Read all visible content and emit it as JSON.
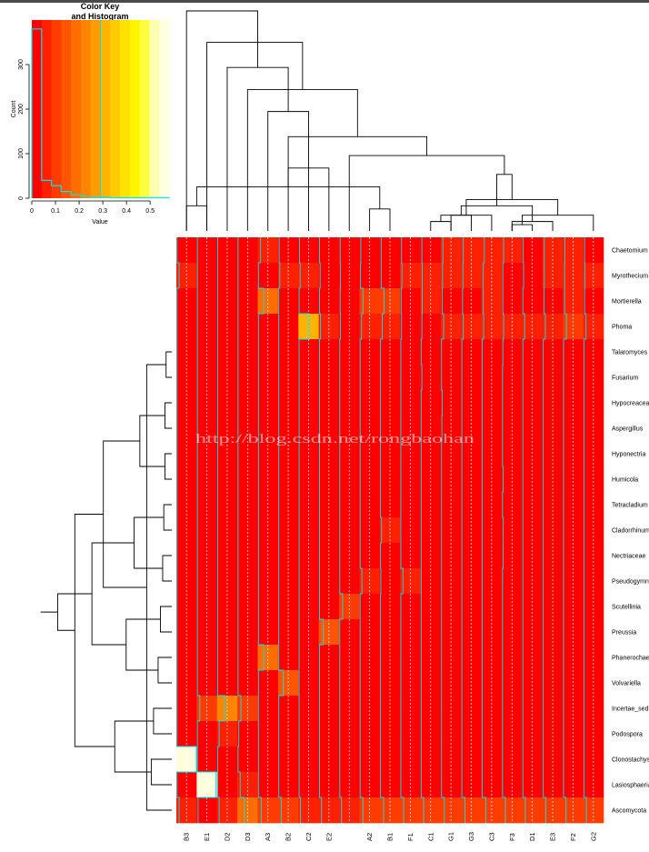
{
  "chart_data": {
    "type": "heatmap",
    "color_key": {
      "title_line1": "Color Key",
      "title_line2": "and Histogram",
      "xlabel": "Value",
      "ylabel": "Count",
      "x_ticks": [
        "0",
        "0.1",
        "0.2",
        "0.3",
        "0.4",
        "0.5"
      ],
      "y_ticks": [
        "0",
        "100",
        "200",
        "300"
      ],
      "xlim": [
        0,
        0.58
      ],
      "ylim": [
        0,
        400
      ],
      "palette": [
        "#ff0000",
        "#ff2000",
        "#ff3c00",
        "#ff5500",
        "#ff6d00",
        "#ff8500",
        "#ff9d00",
        "#ffb400",
        "#ffcc00",
        "#ffe200",
        "#fff500",
        "#ffff40",
        "#ffffb0",
        "#ffffe0"
      ],
      "hist_counts": [
        380,
        40,
        28,
        15,
        8,
        4,
        3,
        2,
        1,
        1,
        1,
        1,
        1,
        1
      ],
      "trace_color": "#00e5ee"
    },
    "columns": [
      "B3",
      "E1",
      "D2",
      "D3",
      "A3",
      "B2",
      "C2",
      "E2",
      "",
      "A2",
      "B1",
      "F1",
      "C1",
      "G1",
      "G3",
      "C3",
      "F3",
      "D1",
      "E3",
      "F2",
      "G2"
    ],
    "rows": [
      "Chaetomium",
      "Myrothecium",
      "Mortierella",
      "Phoma",
      "Talaromyces",
      "Fusarium",
      "Hypocreaceae",
      "Aspergillus",
      "Hyponectria",
      "Humicola",
      "Tetracladium",
      "Cladorrhinum",
      "Nectriaceae",
      "Pseudogymnoascus",
      "Scutellinia",
      "Preussia",
      "Phanerochaete",
      "Volvariella",
      "Incertae_sedis",
      "Podospora",
      "Clonostachys",
      "Lasiosphaeria",
      "Ascomycota"
    ],
    "values": [
      [
        0.02,
        0.02,
        0.02,
        0.02,
        0.08,
        0.03,
        0.03,
        0.02,
        0.03,
        0.04,
        0.04,
        0.04,
        0.04,
        0.06,
        0.06,
        0.08,
        0.05,
        0.03,
        0.05,
        0.06,
        0.04
      ],
      [
        0.08,
        0.02,
        0.02,
        0.02,
        0.02,
        0.05,
        0.05,
        0.04,
        0.04,
        0.03,
        0.04,
        0.05,
        0.05,
        0.05,
        0.05,
        0.05,
        0.03,
        0.04,
        0.05,
        0.05,
        0.05
      ],
      [
        0.02,
        0.02,
        0.02,
        0.02,
        0.17,
        0.02,
        0.02,
        0.02,
        0.03,
        0.1,
        0.12,
        0.03,
        0.05,
        0.04,
        0.04,
        0.05,
        0.03,
        0.02,
        0.04,
        0.05,
        0.04
      ],
      [
        0.02,
        0.02,
        0.02,
        0.02,
        0.02,
        0.02,
        0.3,
        0.05,
        0.04,
        0.06,
        0.07,
        0.04,
        0.04,
        0.08,
        0.06,
        0.06,
        0.05,
        0.07,
        0.08,
        0.1,
        0.08
      ],
      [
        0.02,
        0.02,
        0.02,
        0.02,
        0.02,
        0.02,
        0.02,
        0.02,
        0.02,
        0.02,
        0.02,
        0.02,
        0.02,
        0.02,
        0.02,
        0.02,
        0.03,
        0.02,
        0.02,
        0.02,
        0.02
      ],
      [
        0.02,
        0.02,
        0.02,
        0.02,
        0.02,
        0.02,
        0.02,
        0.02,
        0.02,
        0.02,
        0.02,
        0.02,
        0.04,
        0.02,
        0.02,
        0.02,
        0.02,
        0.02,
        0.02,
        0.02,
        0.02
      ],
      [
        0.02,
        0.02,
        0.02,
        0.02,
        0.02,
        0.02,
        0.02,
        0.02,
        0.02,
        0.02,
        0.02,
        0.02,
        0.02,
        0.04,
        0.02,
        0.02,
        0.02,
        0.02,
        0.02,
        0.02,
        0.02
      ],
      [
        0.02,
        0.02,
        0.02,
        0.02,
        0.02,
        0.02,
        0.02,
        0.02,
        0.02,
        0.02,
        0.02,
        0.02,
        0.02,
        0.03,
        0.02,
        0.02,
        0.02,
        0.02,
        0.02,
        0.02,
        0.02
      ],
      [
        0.02,
        0.02,
        0.02,
        0.02,
        0.02,
        0.02,
        0.02,
        0.02,
        0.02,
        0.02,
        0.02,
        0.02,
        0.02,
        0.02,
        0.02,
        0.02,
        0.02,
        0.02,
        0.02,
        0.02,
        0.02
      ],
      [
        0.02,
        0.02,
        0.02,
        0.02,
        0.02,
        0.02,
        0.02,
        0.02,
        0.02,
        0.02,
        0.02,
        0.02,
        0.02,
        0.02,
        0.02,
        0.02,
        0.04,
        0.02,
        0.02,
        0.02,
        0.02
      ],
      [
        0.02,
        0.02,
        0.02,
        0.02,
        0.02,
        0.02,
        0.02,
        0.02,
        0.02,
        0.02,
        0.02,
        0.02,
        0.02,
        0.02,
        0.02,
        0.02,
        0.02,
        0.02,
        0.02,
        0.02,
        0.02
      ],
      [
        0.02,
        0.02,
        0.02,
        0.02,
        0.02,
        0.02,
        0.02,
        0.02,
        0.02,
        0.02,
        0.05,
        0.02,
        0.02,
        0.02,
        0.02,
        0.02,
        0.04,
        0.02,
        0.02,
        0.02,
        0.02
      ],
      [
        0.02,
        0.02,
        0.02,
        0.02,
        0.02,
        0.02,
        0.02,
        0.02,
        0.02,
        0.02,
        0.02,
        0.02,
        0.02,
        0.02,
        0.02,
        0.02,
        0.04,
        0.02,
        0.02,
        0.02,
        0.02
      ],
      [
        0.02,
        0.02,
        0.02,
        0.02,
        0.02,
        0.02,
        0.02,
        0.02,
        0.02,
        0.07,
        0.03,
        0.08,
        0.02,
        0.02,
        0.02,
        0.02,
        0.02,
        0.02,
        0.02,
        0.02,
        0.02
      ],
      [
        0.02,
        0.02,
        0.02,
        0.02,
        0.02,
        0.02,
        0.02,
        0.02,
        0.1,
        0.02,
        0.02,
        0.02,
        0.02,
        0.02,
        0.02,
        0.02,
        0.02,
        0.02,
        0.02,
        0.02,
        0.02
      ],
      [
        0.02,
        0.02,
        0.02,
        0.02,
        0.02,
        0.02,
        0.02,
        0.13,
        0.02,
        0.02,
        0.02,
        0.02,
        0.02,
        0.02,
        0.02,
        0.02,
        0.02,
        0.02,
        0.02,
        0.02,
        0.02
      ],
      [
        0.02,
        0.02,
        0.02,
        0.02,
        0.17,
        0.02,
        0.02,
        0.02,
        0.02,
        0.02,
        0.02,
        0.02,
        0.02,
        0.02,
        0.02,
        0.02,
        0.02,
        0.02,
        0.02,
        0.02,
        0.02
      ],
      [
        0.02,
        0.02,
        0.02,
        0.02,
        0.02,
        0.15,
        0.02,
        0.02,
        0.02,
        0.02,
        0.02,
        0.02,
        0.02,
        0.02,
        0.02,
        0.02,
        0.02,
        0.02,
        0.02,
        0.02,
        0.02
      ],
      [
        0.02,
        0.09,
        0.22,
        0.1,
        0.02,
        0.02,
        0.02,
        0.02,
        0.02,
        0.02,
        0.02,
        0.02,
        0.02,
        0.02,
        0.02,
        0.02,
        0.02,
        0.02,
        0.02,
        0.02,
        0.02
      ],
      [
        0.02,
        0.02,
        0.06,
        0.04,
        0.02,
        0.02,
        0.02,
        0.02,
        0.02,
        0.02,
        0.02,
        0.02,
        0.02,
        0.02,
        0.02,
        0.02,
        0.02,
        0.02,
        0.02,
        0.02,
        0.02
      ],
      [
        0.57,
        0.02,
        0.02,
        0.02,
        0.02,
        0.02,
        0.02,
        0.02,
        0.02,
        0.02,
        0.02,
        0.02,
        0.02,
        0.02,
        0.02,
        0.02,
        0.02,
        0.02,
        0.02,
        0.02,
        0.02
      ],
      [
        0.02,
        0.55,
        0.02,
        0.08,
        0.02,
        0.02,
        0.02,
        0.02,
        0.02,
        0.02,
        0.02,
        0.02,
        0.02,
        0.02,
        0.02,
        0.02,
        0.02,
        0.02,
        0.02,
        0.02,
        0.02
      ],
      [
        0.08,
        0.04,
        0.06,
        0.2,
        0.1,
        0.09,
        0.06,
        0.08,
        0.07,
        0.1,
        0.11,
        0.1,
        0.09,
        0.1,
        0.11,
        0.12,
        0.1,
        0.09,
        0.09,
        0.09,
        0.09
      ]
    ],
    "col_dendrogram": [
      [
        16,
        17,
        2
      ],
      [
        12,
        13,
        3
      ],
      [
        13,
        14,
        5
      ],
      [
        16,
        18,
        3
      ],
      [
        20,
        21,
        5
      ],
      [
        15,
        22,
        5
      ],
      [
        9,
        10,
        7
      ],
      [
        0,
        1,
        8
      ],
      [
        23,
        24,
        8
      ],
      [
        25,
        26,
        10
      ],
      [
        27,
        28,
        14
      ],
      [
        29,
        30,
        18
      ],
      [
        7,
        31,
        20
      ],
      [
        8,
        32,
        24
      ],
      [
        6,
        33,
        26
      ],
      [
        5,
        34,
        30
      ],
      [
        4,
        35,
        38
      ],
      [
        3,
        36,
        45
      ],
      [
        2,
        37,
        52
      ],
      [
        1,
        38,
        60
      ],
      [
        0,
        39,
        70
      ]
    ],
    "row_dendrogram": [
      [
        4,
        5,
        5
      ],
      [
        6,
        7,
        6
      ],
      [
        8,
        9,
        6
      ],
      [
        10,
        11,
        7
      ],
      [
        12,
        13,
        8
      ],
      [
        14,
        15,
        10
      ],
      [
        16,
        17,
        12
      ],
      [
        18,
        19,
        16
      ],
      [
        20,
        21,
        18
      ],
      [
        22,
        23,
        22
      ],
      [
        24,
        25,
        28
      ],
      [
        26,
        27,
        33
      ],
      [
        28,
        29,
        40
      ],
      [
        30,
        31,
        50
      ],
      [
        32,
        33,
        60
      ],
      [
        34,
        35,
        70
      ],
      [
        36,
        37,
        85
      ],
      [
        38,
        39,
        100
      ],
      [
        40,
        41,
        115
      ],
      [
        42,
        43,
        125
      ],
      [
        44,
        45,
        135
      ],
      [
        46,
        47,
        145
      ]
    ],
    "watermark": "http://blog.csdn.net/rongbaohan"
  }
}
